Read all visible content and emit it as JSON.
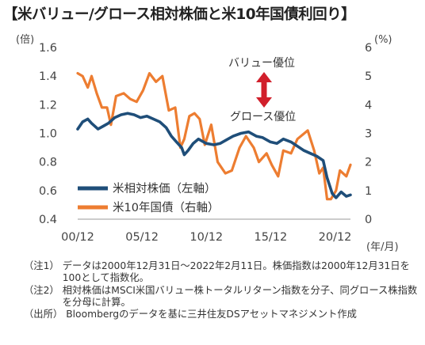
{
  "title": "【米バリュー/グロース相対株価と米10年国債利回り】",
  "chart_data": {
    "type": "line",
    "left_axis_unit": "(倍)",
    "right_axis_unit": "(%)",
    "x_unit": "(年/月)",
    "x_tick_labels": [
      "00/12",
      "05/12",
      "10/12",
      "15/12",
      "20/12"
    ],
    "x_ticks": [
      2000.92,
      2005.92,
      2010.92,
      2015.92,
      2020.92
    ],
    "x_range": [
      2000.92,
      2022.12
    ],
    "left_ylim": [
      0.4,
      1.6
    ],
    "left_ticks": [
      "0.4",
      "0.6",
      "0.8",
      "1.0",
      "1.2",
      "1.4",
      "1.6"
    ],
    "right_ylim": [
      0,
      6
    ],
    "right_ticks": [
      "0",
      "1",
      "2",
      "3",
      "4",
      "5",
      "6"
    ],
    "grid": false,
    "legend_placement": "bottom-left",
    "annotations": {
      "top": "バリュー優位",
      "bottom": "グロース優位"
    },
    "series": [
      {
        "name": "米相対株価（左軸）",
        "axis": "left",
        "color": "#1f4e79",
        "x": [
          2000.92,
          2001.3,
          2001.7,
          2002.0,
          2002.5,
          2002.9,
          2003.3,
          2003.8,
          2004.3,
          2004.8,
          2005.3,
          2005.8,
          2006.3,
          2006.8,
          2007.3,
          2007.8,
          2008.2,
          2008.6,
          2009.0,
          2009.2,
          2009.5,
          2009.9,
          2010.3,
          2010.9,
          2011.5,
          2012.0,
          2012.6,
          2013.0,
          2013.6,
          2014.2,
          2014.8,
          2015.3,
          2015.9,
          2016.4,
          2016.9,
          2017.5,
          2018.0,
          2018.5,
          2019.0,
          2019.5,
          2020.0,
          2020.3,
          2020.7,
          2021.0,
          2021.4,
          2021.8,
          2022.12
        ],
        "values": [
          1.03,
          1.08,
          1.1,
          1.07,
          1.03,
          1.05,
          1.07,
          1.11,
          1.13,
          1.14,
          1.13,
          1.11,
          1.12,
          1.1,
          1.08,
          1.04,
          0.98,
          0.94,
          0.9,
          0.85,
          0.88,
          0.93,
          0.96,
          0.93,
          0.92,
          0.93,
          0.96,
          0.98,
          1.0,
          1.01,
          0.98,
          0.97,
          0.94,
          0.93,
          0.96,
          0.94,
          0.91,
          0.88,
          0.86,
          0.84,
          0.81,
          0.69,
          0.58,
          0.55,
          0.59,
          0.56,
          0.57
        ]
      },
      {
        "name": "米10年国債（右軸）",
        "axis": "right",
        "color": "#ed7d31",
        "x": [
          2000.92,
          2001.3,
          2001.7,
          2002.0,
          2002.4,
          2002.8,
          2003.2,
          2003.5,
          2003.9,
          2004.5,
          2005.0,
          2005.5,
          2006.0,
          2006.5,
          2007.0,
          2007.5,
          2008.0,
          2008.5,
          2008.9,
          2009.2,
          2009.6,
          2010.0,
          2010.4,
          2010.8,
          2011.3,
          2011.8,
          2012.4,
          2012.9,
          2013.5,
          2014.0,
          2014.6,
          2015.0,
          2015.6,
          2016.0,
          2016.5,
          2016.9,
          2017.5,
          2018.0,
          2018.8,
          2019.3,
          2019.7,
          2020.0,
          2020.3,
          2020.6,
          2021.0,
          2021.3,
          2021.8,
          2022.12
        ],
        "values": [
          5.1,
          5.0,
          4.6,
          5.0,
          4.4,
          3.9,
          3.9,
          3.3,
          4.3,
          4.4,
          4.2,
          4.1,
          4.5,
          5.1,
          4.8,
          5.0,
          3.8,
          3.9,
          2.5,
          2.8,
          3.6,
          3.7,
          3.5,
          2.6,
          3.3,
          2.0,
          1.6,
          1.7,
          2.5,
          2.9,
          2.5,
          2.0,
          2.3,
          1.9,
          1.5,
          2.4,
          2.3,
          2.8,
          3.1,
          2.4,
          1.6,
          1.8,
          0.7,
          0.7,
          1.0,
          1.7,
          1.5,
          1.9
        ]
      }
    ]
  },
  "notes": [
    {
      "label": "（注1）",
      "text": "データは2000年12月31日～2022年2月11日。株価指数は2000年12月31日を100として指数化。"
    },
    {
      "label": "（注2）",
      "text": "相対株価はMSCI米国バリュー株トータルリターン指数を分子、同グロース株指数を分母に計算。"
    },
    {
      "label": "（出所）",
      "text": "Bloombergのデータを基に三井住友DSアセットマネジメント作成"
    }
  ]
}
